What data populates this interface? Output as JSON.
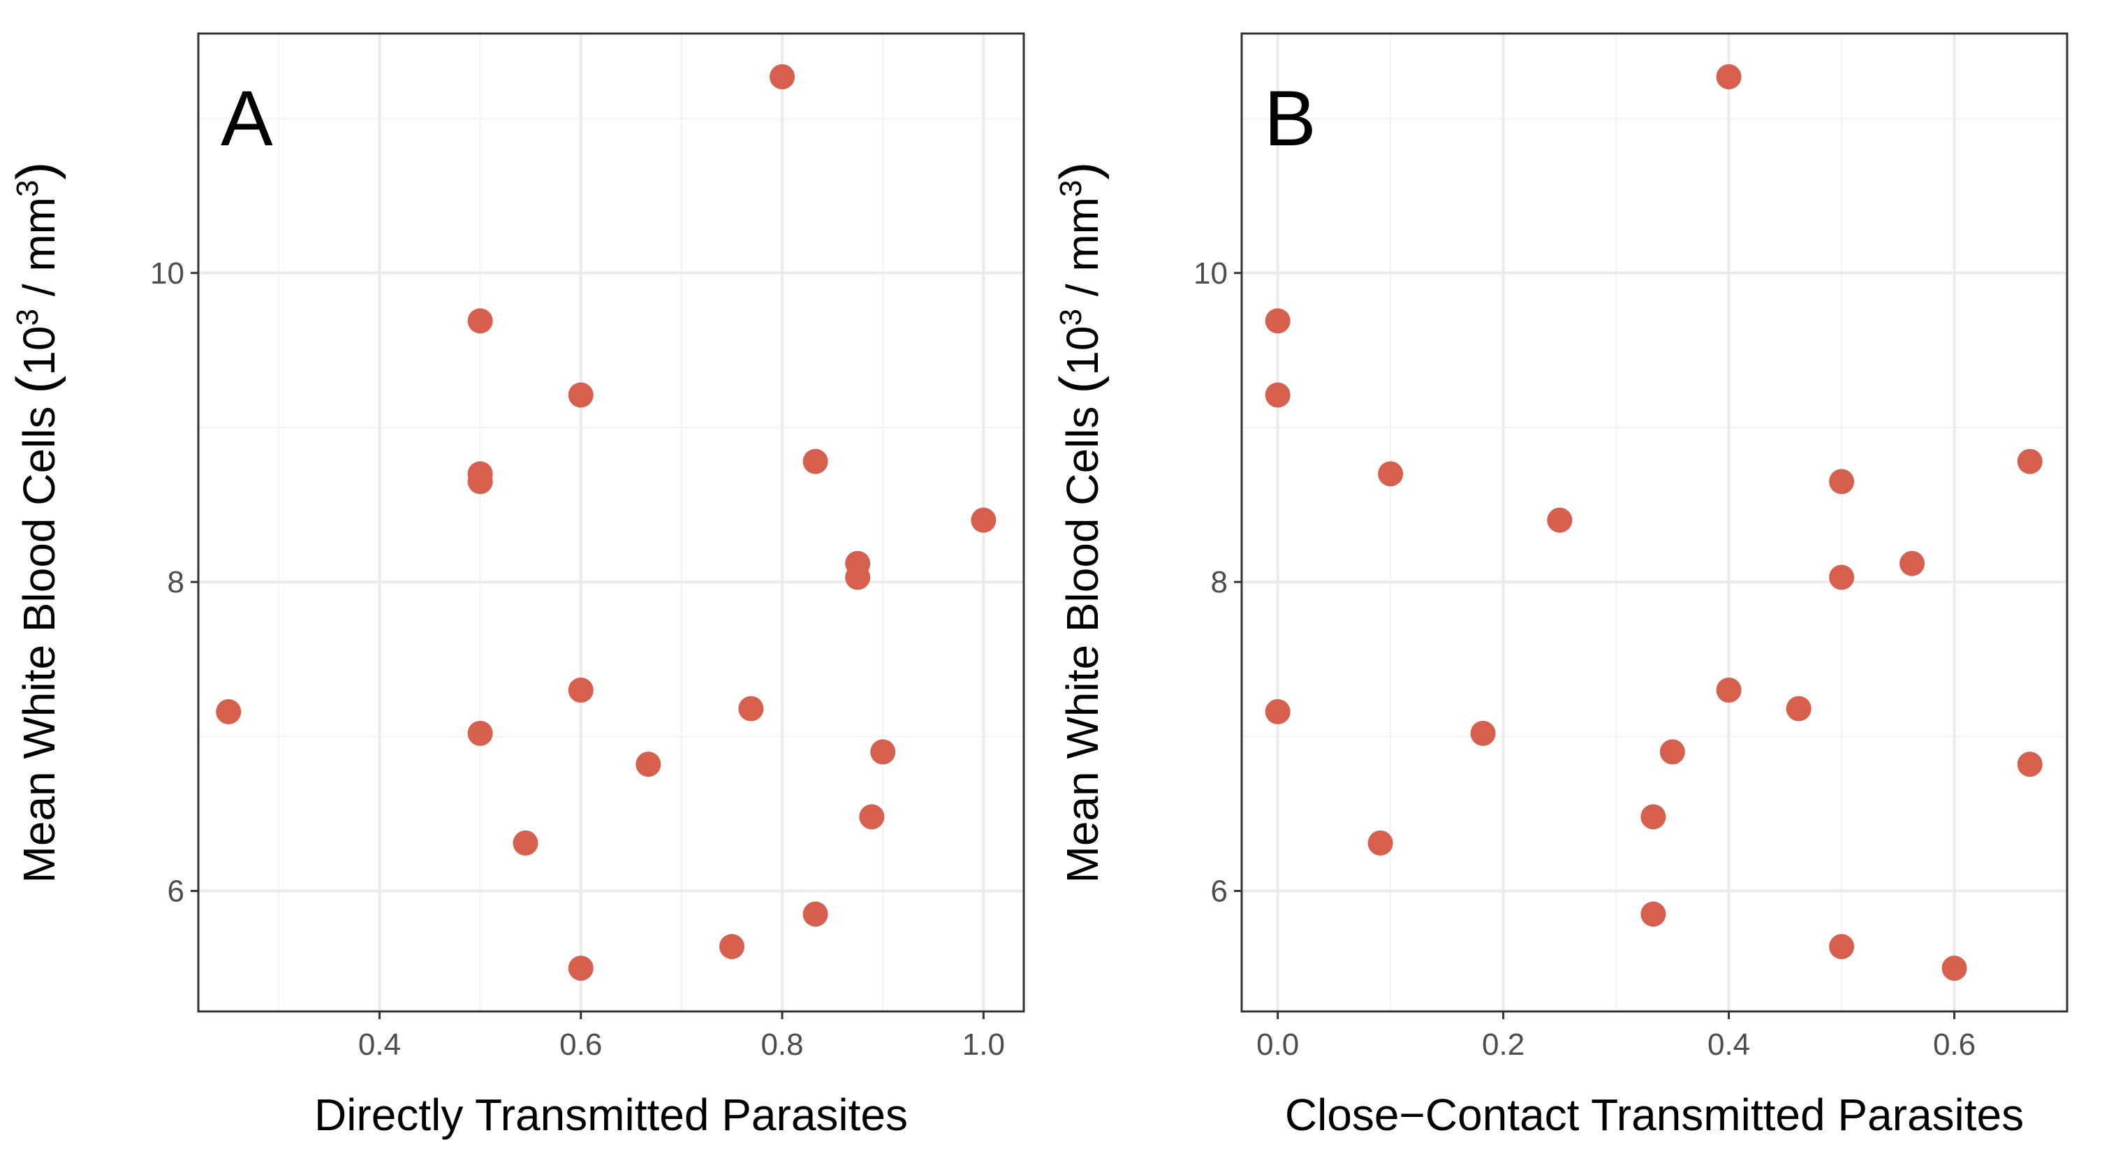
{
  "colors": {
    "point": "#d6604d",
    "grid_major": "#ebebeb",
    "grid_minor": "#f3f3f3",
    "panel_border": "#333333",
    "tick_text": "#4d4d4d"
  },
  "chart_data": [
    {
      "type": "scatter",
      "panel_label": "A",
      "xlabel": "Directly Transmitted Parasites",
      "ylabel": "Mean White Blood Cells",
      "ylabel_unit_parts": [
        "(",
        "10",
        "3",
        " / mm",
        "3",
        ")"
      ],
      "xlim": [
        0.22,
        1.04
      ],
      "ylim": [
        5.22,
        11.55
      ],
      "x_ticks": [
        0.4,
        0.6,
        0.8,
        1.0
      ],
      "x_tick_labels": [
        "0.4",
        "0.6",
        "0.8",
        "1.0"
      ],
      "x_minor_ticks": [
        0.3,
        0.5,
        0.7,
        0.9
      ],
      "y_ticks": [
        6,
        8,
        10
      ],
      "y_tick_labels": [
        "6",
        "8",
        "10"
      ],
      "y_minor_ticks": [
        5,
        7,
        9,
        11
      ],
      "grid": true,
      "points": [
        {
          "x": 0.25,
          "y": 7.16
        },
        {
          "x": 0.5,
          "y": 9.69
        },
        {
          "x": 0.5,
          "y": 8.7
        },
        {
          "x": 0.5,
          "y": 8.65
        },
        {
          "x": 0.5,
          "y": 7.02
        },
        {
          "x": 0.545,
          "y": 6.31
        },
        {
          "x": 0.6,
          "y": 9.21
        },
        {
          "x": 0.6,
          "y": 7.3
        },
        {
          "x": 0.6,
          "y": 5.5
        },
        {
          "x": 0.667,
          "y": 6.82
        },
        {
          "x": 0.75,
          "y": 5.64
        },
        {
          "x": 0.769,
          "y": 7.18
        },
        {
          "x": 0.8,
          "y": 11.27
        },
        {
          "x": 0.833,
          "y": 8.78
        },
        {
          "x": 0.833,
          "y": 5.85
        },
        {
          "x": 0.875,
          "y": 8.12
        },
        {
          "x": 0.875,
          "y": 8.03
        },
        {
          "x": 0.889,
          "y": 6.48
        },
        {
          "x": 0.9,
          "y": 6.9
        },
        {
          "x": 1.0,
          "y": 8.4
        }
      ]
    },
    {
      "type": "scatter",
      "panel_label": "B",
      "xlabel": "Close−Contact Transmitted Parasites",
      "ylabel": "Mean White Blood Cells",
      "ylabel_unit_parts": [
        "(",
        "10",
        "3",
        " / mm",
        "3",
        ")"
      ],
      "xlim": [
        -0.032,
        0.7
      ],
      "ylim": [
        5.22,
        11.55
      ],
      "x_ticks": [
        0.0,
        0.2,
        0.4,
        0.6
      ],
      "x_tick_labels": [
        "0.0",
        "0.2",
        "0.4",
        "0.6"
      ],
      "x_minor_ticks": [
        0.1,
        0.3,
        0.5
      ],
      "y_ticks": [
        6,
        8,
        10
      ],
      "y_tick_labels": [
        "6",
        "8",
        "10"
      ],
      "y_minor_ticks": [
        5,
        7,
        9,
        11
      ],
      "grid": true,
      "points": [
        {
          "x": 0.0,
          "y": 9.69
        },
        {
          "x": 0.0,
          "y": 9.21
        },
        {
          "x": 0.0,
          "y": 7.16
        },
        {
          "x": 0.091,
          "y": 6.31
        },
        {
          "x": 0.1,
          "y": 8.7
        },
        {
          "x": 0.182,
          "y": 7.02
        },
        {
          "x": 0.25,
          "y": 8.4
        },
        {
          "x": 0.333,
          "y": 6.48
        },
        {
          "x": 0.333,
          "y": 5.85
        },
        {
          "x": 0.35,
          "y": 6.9
        },
        {
          "x": 0.4,
          "y": 11.27
        },
        {
          "x": 0.4,
          "y": 7.3
        },
        {
          "x": 0.462,
          "y": 7.18
        },
        {
          "x": 0.5,
          "y": 8.65
        },
        {
          "x": 0.5,
          "y": 8.03
        },
        {
          "x": 0.5,
          "y": 5.64
        },
        {
          "x": 0.5625,
          "y": 8.12
        },
        {
          "x": 0.6,
          "y": 5.5
        },
        {
          "x": 0.667,
          "y": 8.78
        },
        {
          "x": 0.667,
          "y": 6.82
        }
      ]
    }
  ]
}
